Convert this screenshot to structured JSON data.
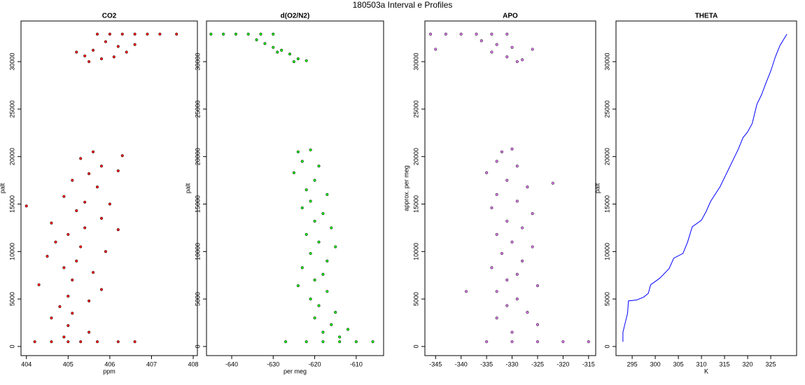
{
  "title": "180503a   Interval e Profiles",
  "chart_data": [
    {
      "type": "scatter",
      "title": "CO2",
      "x_label": "ppm",
      "y_label": "palt",
      "xlim": [
        403.87,
        408.1
      ],
      "ylim": [
        -960,
        34280
      ],
      "xticks": [
        404,
        405,
        406,
        407,
        408
      ],
      "yticks": [
        0,
        5000,
        10000,
        15000,
        20000,
        25000,
        30000
      ],
      "series": [
        {
          "color": "#ff0000",
          "x": [
            405.7,
            406.0,
            406.3,
            406.6,
            406.9,
            407.2,
            407.6,
            405.9,
            406.2,
            405.6,
            406.4,
            405.4,
            405.8,
            406.1,
            405.5,
            406.6,
            405.2,
            405.6,
            405.3,
            405.8,
            405.5,
            406.2,
            405.1,
            405.7,
            404.9,
            405.4,
            406.0,
            405.2,
            405.8,
            404.6,
            405.4,
            405.0,
            404.7,
            405.3,
            405.9,
            404.5,
            405.2,
            404.9,
            405.6,
            405.1,
            404.3,
            405.8,
            405.0,
            405.5,
            404.8,
            405.1,
            404.6,
            405.0,
            405.5,
            404.9,
            404.2,
            404.6,
            405.0,
            405.3,
            405.7,
            406.2,
            406.6,
            404.0,
            406.3,
            406.2
          ],
          "y": [
            32900,
            32900,
            32900,
            32900,
            32900,
            32900,
            32900,
            32100,
            31600,
            31200,
            31000,
            30600,
            30300,
            30500,
            30000,
            31800,
            31000,
            20500,
            19800,
            19000,
            18200,
            18500,
            17500,
            16800,
            15800,
            15200,
            15000,
            14300,
            13500,
            13000,
            12500,
            11800,
            11000,
            10500,
            10000,
            9500,
            9000,
            8300,
            7800,
            7000,
            6500,
            6000,
            5300,
            4800,
            4200,
            3500,
            3000,
            2200,
            1500,
            1000,
            500,
            500,
            500,
            500,
            500,
            500,
            500,
            14800,
            20100,
            12300
          ]
        }
      ]
    },
    {
      "type": "scatter",
      "title": "d(O2/N2)",
      "x_label": "per meg",
      "y_label": "palt",
      "xlim": [
        -646.07,
        -603.4
      ],
      "ylim": [
        -960,
        34280
      ],
      "xticks": [
        -640,
        -630,
        -620,
        -610
      ],
      "yticks": [
        0,
        5000,
        10000,
        15000,
        20000,
        25000,
        30000
      ],
      "series": [
        {
          "color": "#00ee00",
          "x": [
            -645,
            -642,
            -639,
            -636,
            -633,
            -630,
            -634,
            -632,
            -630,
            -628,
            -626,
            -624,
            -625,
            -629,
            -622,
            -624,
            -621,
            -623,
            -619,
            -625,
            -620,
            -622,
            -617,
            -621,
            -623,
            -618,
            -620,
            -616,
            -622,
            -619,
            -615,
            -621,
            -617,
            -623,
            -618,
            -620,
            -624,
            -617,
            -621,
            -619,
            -615,
            -620,
            -616,
            -618,
            -614,
            -622,
            -618,
            -614,
            -610,
            -606,
            -627,
            -612
          ],
          "y": [
            32900,
            32900,
            32900,
            32900,
            32900,
            32900,
            32300,
            31900,
            31500,
            31200,
            30800,
            30300,
            30000,
            31000,
            30100,
            20500,
            20700,
            19500,
            19000,
            18300,
            17500,
            16500,
            16000,
            15300,
            14600,
            14000,
            13200,
            12500,
            11800,
            11000,
            10500,
            9800,
            9000,
            8300,
            7600,
            7000,
            6400,
            5800,
            5000,
            4300,
            3600,
            3000,
            2300,
            1500,
            1000,
            500,
            500,
            500,
            500,
            500,
            500,
            1800
          ]
        }
      ]
    },
    {
      "type": "scatter",
      "title": "APO",
      "y_label": "approx. per meg",
      "xlim": [
        -347.1,
        -313.6
      ],
      "ylim": [
        -960,
        34280
      ],
      "xticks": [
        -345,
        -340,
        -335,
        -330,
        -325,
        -320,
        -315
      ],
      "yticks": [
        0,
        5000,
        10000,
        15000,
        20000,
        25000,
        30000
      ],
      "series": [
        {
          "color": "#e070f0",
          "x": [
            -346,
            -343,
            -340,
            -337,
            -334,
            -331,
            -336,
            -333,
            -330,
            -334,
            -331,
            -328,
            -329,
            -326,
            -345,
            -332,
            -330,
            -333,
            -329,
            -335,
            -331,
            -327,
            -333,
            -329,
            -334,
            -326,
            -331,
            -328,
            -333,
            -330,
            -326,
            -332,
            -328,
            -334,
            -329,
            -331,
            -325,
            -333,
            -329,
            -331,
            -327,
            -333,
            -325,
            -330,
            -339,
            -335,
            -330,
            -325,
            -320,
            -315,
            -322
          ],
          "y": [
            32900,
            32900,
            32900,
            32900,
            32900,
            32900,
            32200,
            31800,
            31500,
            31000,
            30500,
            30200,
            30000,
            31300,
            31300,
            20500,
            20800,
            19500,
            19000,
            18300,
            17500,
            16800,
            16000,
            15300,
            14600,
            14000,
            13200,
            12500,
            11800,
            11000,
            10500,
            9800,
            9000,
            8300,
            7600,
            7000,
            6400,
            5800,
            5000,
            4300,
            3600,
            3000,
            2300,
            1500,
            5800,
            500,
            500,
            500,
            500,
            500,
            17200
          ]
        }
      ]
    },
    {
      "type": "line",
      "title": "THETA",
      "x_label": "K",
      "y_label": "palt",
      "xlim": [
        291.5,
        330.6
      ],
      "ylim": [
        -960,
        34280
      ],
      "xticks": [
        295,
        300,
        305,
        310,
        315,
        320,
        325
      ],
      "yticks": [
        0,
        5000,
        10000,
        15000,
        20000,
        25000,
        30000
      ],
      "series": [
        {
          "color": "#0000ff",
          "x": [
            293,
            293,
            293.5,
            294,
            294.2,
            296,
            297.5,
            298.5,
            299,
            301,
            303,
            304,
            306,
            307,
            308,
            310,
            311,
            312,
            314,
            315,
            316,
            317,
            318,
            319,
            320,
            321,
            321.5,
            322,
            323,
            324,
            325,
            326,
            327,
            328,
            328.5
          ],
          "y": [
            500,
            1500,
            2500,
            3500,
            4800,
            4900,
            5200,
            5600,
            6500,
            7200,
            8200,
            9300,
            9800,
            11000,
            12600,
            13300,
            14200,
            15300,
            16800,
            17800,
            18800,
            19800,
            20800,
            22000,
            22600,
            23500,
            24500,
            25500,
            26500,
            27800,
            29000,
            30500,
            31700,
            32500,
            32900
          ]
        }
      ]
    }
  ]
}
